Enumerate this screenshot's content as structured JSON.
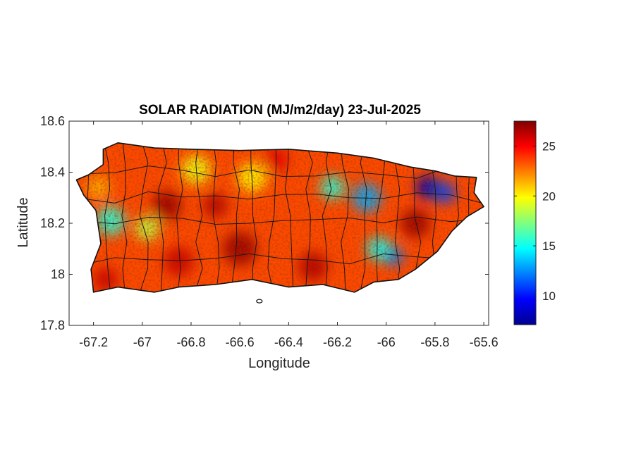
{
  "title": "SOLAR RADIATION (MJ/m2/day) 23-Jul-2025",
  "xlabel": "Longitude",
  "ylabel": "Latitude",
  "x_range": [
    -67.3,
    -65.58
  ],
  "y_range": [
    17.8,
    18.6
  ],
  "x_ticks": [
    -67.2,
    -67,
    -66.8,
    -66.6,
    -66.4,
    -66.2,
    -66,
    -65.8,
    -65.6
  ],
  "x_tick_labels": [
    "-67.2",
    "-67",
    "-66.8",
    "-66.6",
    "-66.4",
    "-66.2",
    "-66",
    "-65.8",
    "-65.6"
  ],
  "y_ticks": [
    17.8,
    18,
    18.2,
    18.4,
    18.6
  ],
  "y_tick_labels": [
    "17.8",
    "18",
    "18.2",
    "18.4",
    "18.6"
  ],
  "colorbar": {
    "colormap": "jet",
    "range": [
      7.1,
      27.5
    ],
    "ticks": [
      10,
      15,
      20,
      25
    ],
    "tick_labels": [
      "10",
      "15",
      "20",
      "25"
    ]
  },
  "chart_data": {
    "type": "heatmap",
    "title": "SOLAR RADIATION (MJ/m2/day) 23-Jul-2025",
    "xlabel": "Longitude",
    "ylabel": "Latitude",
    "xlim": [
      -67.3,
      -65.58
    ],
    "ylim": [
      17.8,
      18.6
    ],
    "clim": [
      7.1,
      27.5
    ],
    "grid": false,
    "region_outline": [
      [
        -67.27,
        18.37
      ],
      [
        -67.22,
        18.39
      ],
      [
        -67.16,
        18.43
      ],
      [
        -67.16,
        18.49
      ],
      [
        -67.1,
        18.515
      ],
      [
        -66.95,
        18.495
      ],
      [
        -66.8,
        18.49
      ],
      [
        -66.6,
        18.485
      ],
      [
        -66.4,
        18.49
      ],
      [
        -66.2,
        18.475
      ],
      [
        -66.05,
        18.455
      ],
      [
        -65.9,
        18.42
      ],
      [
        -65.8,
        18.405
      ],
      [
        -65.72,
        18.385
      ],
      [
        -65.63,
        18.38
      ],
      [
        -65.64,
        18.32
      ],
      [
        -65.6,
        18.265
      ],
      [
        -65.67,
        18.225
      ],
      [
        -65.73,
        18.17
      ],
      [
        -65.79,
        18.09
      ],
      [
        -65.88,
        18.02
      ],
      [
        -65.95,
        17.98
      ],
      [
        -66.05,
        17.97
      ],
      [
        -66.13,
        17.93
      ],
      [
        -66.26,
        17.96
      ],
      [
        -66.4,
        17.95
      ],
      [
        -66.55,
        17.98
      ],
      [
        -66.7,
        17.96
      ],
      [
        -66.85,
        17.95
      ],
      [
        -66.95,
        17.93
      ],
      [
        -67.1,
        17.95
      ],
      [
        -67.2,
        17.93
      ],
      [
        -67.21,
        18.02
      ],
      [
        -67.17,
        18.12
      ],
      [
        -67.19,
        18.25
      ],
      [
        -67.24,
        18.31
      ]
    ],
    "background_value": 23.5,
    "features": [
      {
        "lon": -65.83,
        "lat": 18.34,
        "value": 8.0,
        "radius": 0.05
      },
      {
        "lon": -65.76,
        "lat": 18.32,
        "value": 11.0,
        "radius": 0.045
      },
      {
        "lon": -66.08,
        "lat": 18.3,
        "value": 13.0,
        "radius": 0.06
      },
      {
        "lon": -66.22,
        "lat": 18.34,
        "value": 15.5,
        "radius": 0.05
      },
      {
        "lon": -65.97,
        "lat": 18.07,
        "value": 12.0,
        "radius": 0.04
      },
      {
        "lon": -66.03,
        "lat": 18.1,
        "value": 15.0,
        "radius": 0.05
      },
      {
        "lon": -67.13,
        "lat": 18.21,
        "value": 15.5,
        "radius": 0.06
      },
      {
        "lon": -66.98,
        "lat": 18.18,
        "value": 18.5,
        "radius": 0.05
      },
      {
        "lon": -66.78,
        "lat": 18.41,
        "value": 19.5,
        "radius": 0.06
      },
      {
        "lon": -66.55,
        "lat": 18.38,
        "value": 20.0,
        "radius": 0.06
      },
      {
        "lon": -67.18,
        "lat": 18.34,
        "value": 21.5,
        "radius": 0.05
      },
      {
        "lon": -66.9,
        "lat": 18.27,
        "value": 27.0,
        "radius": 0.06
      },
      {
        "lon": -66.7,
        "lat": 18.27,
        "value": 26.5,
        "radius": 0.05
      },
      {
        "lon": -66.6,
        "lat": 18.1,
        "value": 27.0,
        "radius": 0.07
      },
      {
        "lon": -66.85,
        "lat": 18.05,
        "value": 26.0,
        "radius": 0.06
      },
      {
        "lon": -66.3,
        "lat": 18.03,
        "value": 26.5,
        "radius": 0.06
      },
      {
        "lon": -65.88,
        "lat": 18.2,
        "value": 27.0,
        "radius": 0.06
      },
      {
        "lon": -66.45,
        "lat": 18.45,
        "value": 25.5,
        "radius": 0.05
      },
      {
        "lon": -67.15,
        "lat": 17.98,
        "value": 26.0,
        "radius": 0.05
      }
    ],
    "colorbar": {
      "colormap": "jet",
      "ticks": [
        10,
        15,
        20,
        25
      ]
    }
  }
}
